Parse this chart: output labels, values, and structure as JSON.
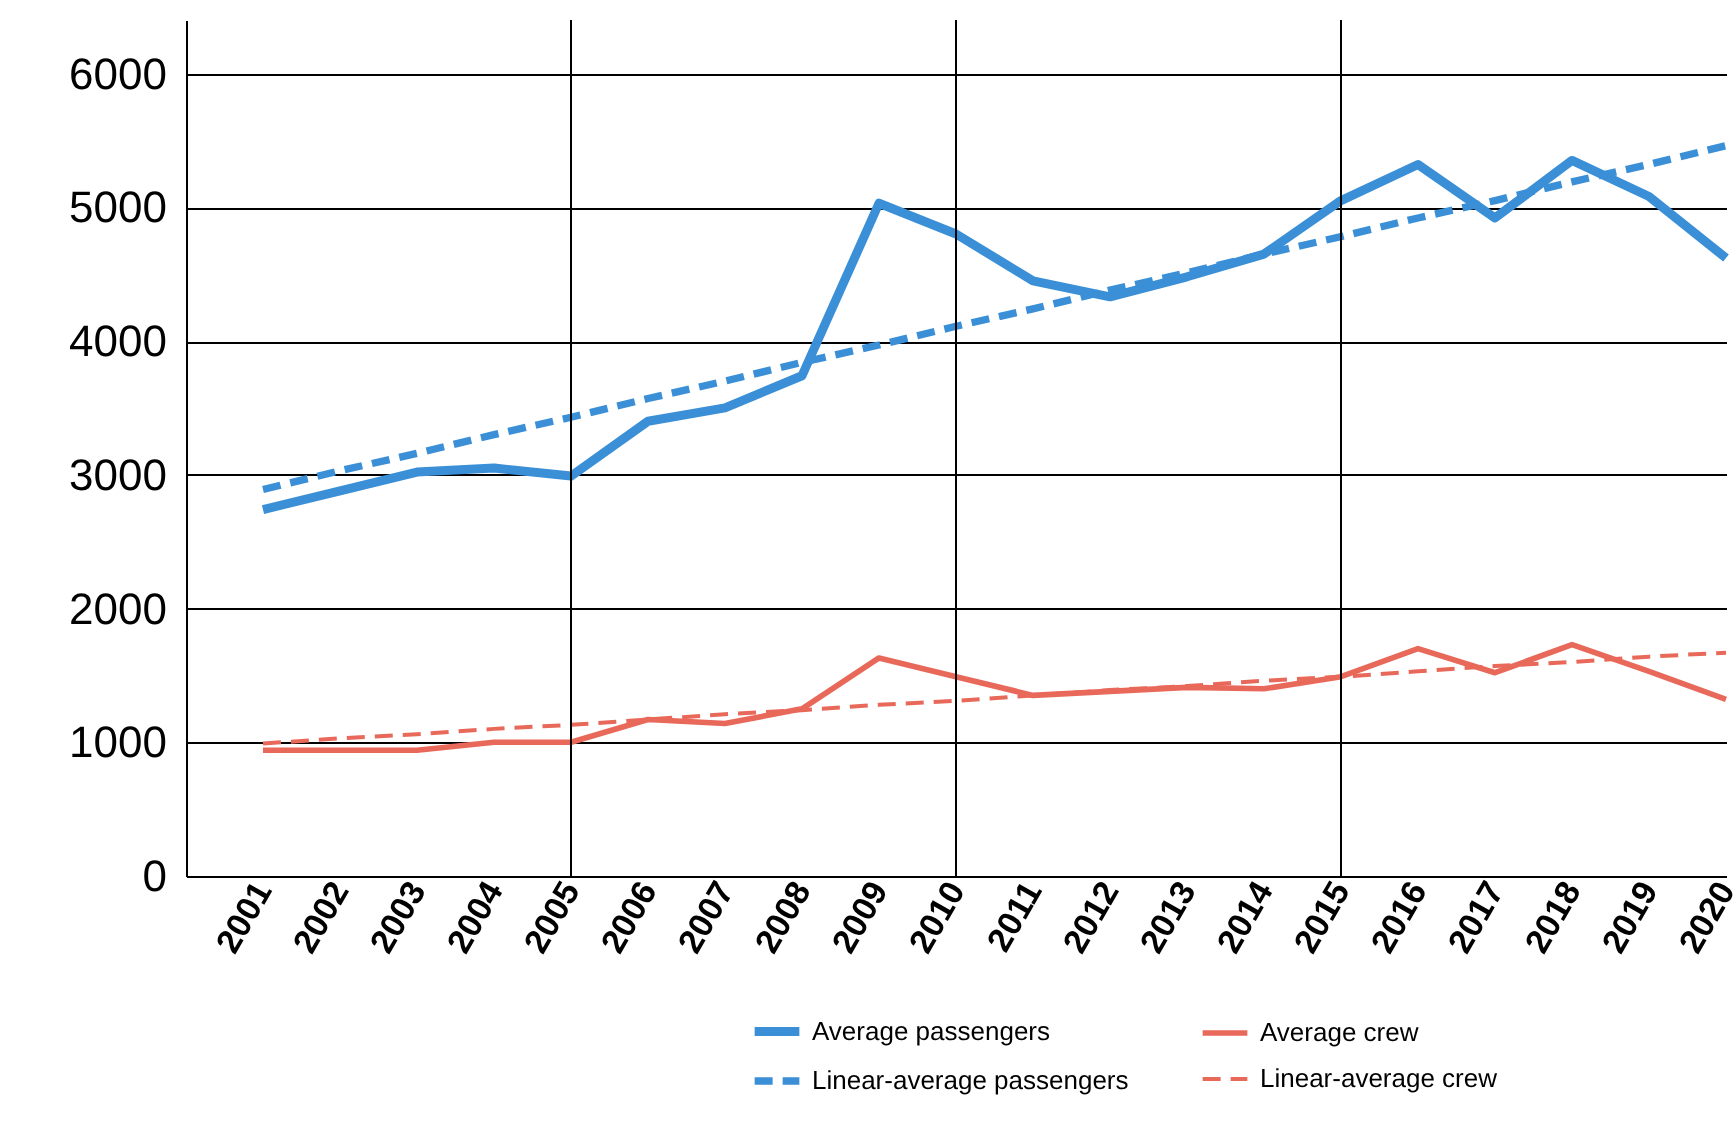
{
  "chart_data": {
    "type": "line",
    "x": [
      2001,
      2002,
      2003,
      2004,
      2005,
      2006,
      2007,
      2008,
      2009,
      2010,
      2011,
      2012,
      2013,
      2014,
      2015,
      2016,
      2017,
      2018,
      2019,
      2020
    ],
    "xlim": [
      2000,
      2020
    ],
    "xticks": [
      2001,
      2002,
      2003,
      2004,
      2005,
      2006,
      2007,
      2008,
      2009,
      2010,
      2011,
      2012,
      2013,
      2014,
      2015,
      2016,
      2017,
      2018,
      2019,
      2020
    ],
    "ylim": [
      0,
      6400
    ],
    "yticks": [
      0,
      1000,
      2000,
      3000,
      4000,
      5000,
      6000
    ],
    "grid": "y",
    "legend": "bottom right",
    "ref_lines": [
      {
        "axis": "x",
        "value": 2005
      },
      {
        "axis": "x",
        "value": 2010
      },
      {
        "axis": "x",
        "value": 2015
      }
    ],
    "series": [
      {
        "name": "Average passengers",
        "color": "#3a8fd6",
        "line_style": "solid",
        "values": [
          2740,
          2880,
          3020,
          3050,
          2990,
          3400,
          3500,
          3740,
          5030,
          4800,
          4450,
          4330,
          4480,
          4650,
          5050,
          5320,
          4920,
          5350,
          5080,
          4620
        ]
      },
      {
        "name": "Linear-average passengers",
        "color": "#3a8fd6",
        "line_style": "dashed",
        "values": [
          2890,
          3030,
          3160,
          3300,
          3430,
          3570,
          3700,
          3840,
          3970,
          4110,
          4240,
          4380,
          4510,
          4650,
          4780,
          4920,
          5050,
          5190,
          5320,
          5460
        ]
      },
      {
        "name": "Average crew",
        "color": "#e8695a",
        "line_style": "solid",
        "values": [
          940,
          940,
          940,
          1000,
          1000,
          1170,
          1140,
          1250,
          1630,
          1490,
          1350,
          1380,
          1410,
          1400,
          1490,
          1700,
          1520,
          1730,
          1530,
          1320
        ]
      },
      {
        "name": "Linear-average crew",
        "color": "#e8695a",
        "line_style": "dashed",
        "values": [
          990,
          1030,
          1060,
          1100,
          1130,
          1170,
          1210,
          1240,
          1280,
          1310,
          1350,
          1390,
          1420,
          1460,
          1490,
          1530,
          1570,
          1600,
          1640,
          1670
        ]
      }
    ]
  }
}
